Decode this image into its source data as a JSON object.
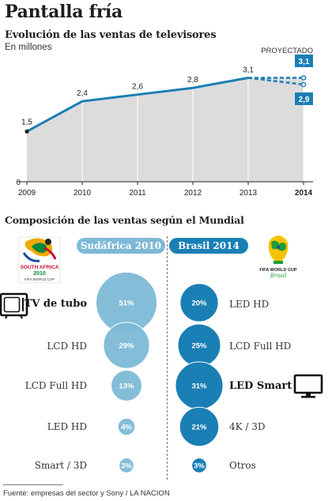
{
  "page_title": "Pantalla fría",
  "chart_data": [
    {
      "type": "line",
      "title": "Evolución de las ventas de televisores",
      "subtitle": "En millones",
      "x": [
        "2009",
        "2010",
        "2011",
        "2012",
        "2013",
        "2014"
      ],
      "series": [
        {
          "values": [
            1.5,
            2.4,
            2.6,
            2.8,
            3.1,
            null
          ],
          "labels": [
            "1,5",
            "2,4",
            "2,6",
            "2,8",
            "3,1",
            ""
          ]
        }
      ],
      "projection": {
        "label": "PROYECTADO",
        "from": {
          "x": "2013",
          "value": 3.1
        },
        "high": {
          "x": "2014",
          "value": 3.1,
          "label": "3,1"
        },
        "low": {
          "x": "2014",
          "value": 2.9,
          "label": "2,9"
        }
      },
      "y_tick_label": "0",
      "ylim": [
        0,
        3.3
      ],
      "highlight_x": "2014",
      "colors": {
        "line": "#1a7fb5",
        "area": "#dcdcdc"
      }
    },
    {
      "type": "bubble",
      "title": "Composición de las ventas según el Mundial",
      "groups": [
        {
          "name": "Sudáfrica 2010",
          "logo_lines": [
            "SOUTH AFRICA",
            "2010",
            "FIFA WORLD CUP"
          ],
          "color": "#7db9d6",
          "items": [
            {
              "label": "TV de tubo",
              "value": 51,
              "value_label": "51%",
              "emphasis": true,
              "icon": "crt-tv-icon"
            },
            {
              "label": "LCD HD",
              "value": 29,
              "value_label": "29%"
            },
            {
              "label": "LCD Full HD",
              "value": 13,
              "value_label": "13%"
            },
            {
              "label": "LED HD",
              "value": 4,
              "value_label": "4%"
            },
            {
              "label": "Smart / 3D",
              "value": 3,
              "value_label": "3%"
            }
          ]
        },
        {
          "name": "Brasil 2014",
          "logo_lines": [
            "FIFA WORLD CUP",
            "Brasil"
          ],
          "color": "#1a7fb5",
          "items": [
            {
              "label": "LED HD",
              "value": 20,
              "value_label": "20%"
            },
            {
              "label": "LCD Full HD",
              "value": 25,
              "value_label": "25%"
            },
            {
              "label": "LED Smart",
              "value": 31,
              "value_label": "31%",
              "emphasis": true,
              "icon": "flat-tv-icon"
            },
            {
              "label": "4K / 3D",
              "value": 21,
              "value_label": "21%"
            },
            {
              "label": "Otros",
              "value": 3,
              "value_label": "3%"
            }
          ]
        }
      ]
    }
  ],
  "source": "Fuente: empresas del sector y Sony / LA NACION"
}
